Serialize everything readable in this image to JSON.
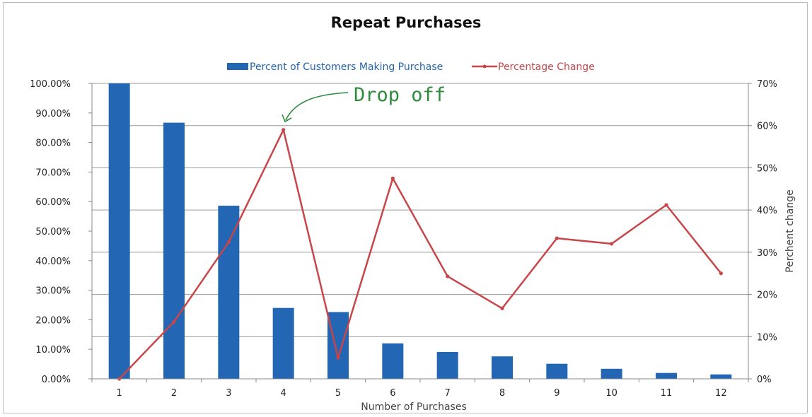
{
  "chart_data": {
    "type": "bar",
    "title": "Repeat Purchases",
    "xlabel": "Number of Purchases",
    "ylabel": "",
    "y2label": "Perchent change",
    "categories": [
      "1",
      "2",
      "3",
      "4",
      "5",
      "6",
      "7",
      "8",
      "9",
      "10",
      "11",
      "12"
    ],
    "ylim": [
      0,
      100
    ],
    "y2lim": [
      0,
      70
    ],
    "yticks": [
      "0.00%",
      "10.00%",
      "20.00%",
      "30.00%",
      "40.00%",
      "50.00%",
      "60.00%",
      "70.00%",
      "80.00%",
      "90.00%",
      "100.00%"
    ],
    "y2ticks": [
      "0%",
      "10%",
      "20%",
      "30%",
      "40%",
      "50%",
      "60%",
      "70%"
    ],
    "grid": true,
    "legend_position": "top-center",
    "series": [
      {
        "name": "Percent of Customers Making Purchase",
        "type": "bar",
        "axis": "left",
        "color": "#2366b3",
        "values": [
          100,
          86.7,
          58.6,
          24.0,
          22.6,
          12.0,
          9.1,
          7.6,
          5.1,
          3.4,
          2.0,
          1.5
        ]
      },
      {
        "name": "Percentage Change",
        "type": "line",
        "axis": "right",
        "color": "#c8464a",
        "values": [
          0,
          13.5,
          32.4,
          59.0,
          5.0,
          47.5,
          24.3,
          16.7,
          33.3,
          32.0,
          41.2,
          25.0
        ]
      }
    ],
    "annotations": [
      {
        "text": "Drop off",
        "color": "#2e8b3e",
        "points_to_category": "4"
      }
    ]
  }
}
